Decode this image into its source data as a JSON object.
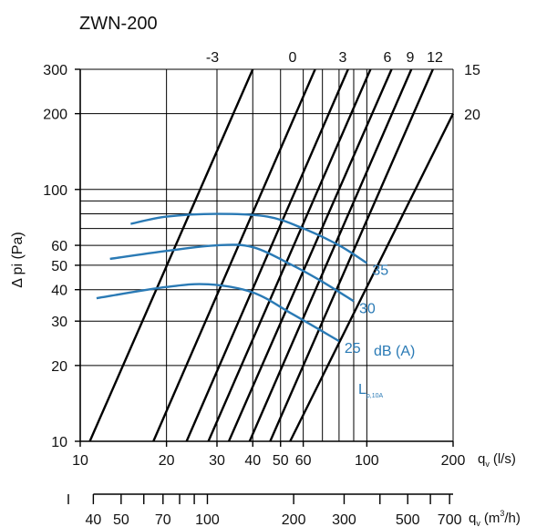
{
  "chart_data": {
    "type": "line",
    "title": "ZWN-200",
    "ylabel": "Δ pi (Pa)",
    "xlabel": "q",
    "xlabel_subscript": "v",
    "xlabel_unit": "(l/s)",
    "x2label": "q",
    "x2label_subscript": "v",
    "x2label_unit_pre": "(m",
    "x2label_unit_sup": "3",
    "x2label_unit_post": "/h)",
    "x_scale": "log",
    "y_scale": "log",
    "xlim": [
      10,
      200
    ],
    "ylim": [
      10,
      300
    ],
    "grid": true,
    "x_ticks": [
      10,
      20,
      30,
      40,
      50,
      60,
      100,
      200
    ],
    "x_tick_labels": [
      "10",
      "20",
      "30",
      "40",
      "50",
      "60",
      "100",
      "200"
    ],
    "y_ticks": [
      10,
      20,
      30,
      40,
      50,
      60,
      100,
      200,
      300
    ],
    "y_tick_labels": [
      "10",
      "20",
      "30",
      "40",
      "50",
      "60",
      "100",
      "200",
      "300"
    ],
    "x2_ticks": [
      40,
      50,
      70,
      100,
      200,
      300,
      500,
      700
    ],
    "x2_tick_labels": [
      "40",
      "50",
      "70",
      "100",
      "200",
      "300",
      "500",
      "700"
    ],
    "x2_minor": [
      60,
      80,
      90,
      400,
      600
    ],
    "setting_labels": [
      "-3",
      "0",
      "3",
      "6",
      "9",
      "12",
      "15",
      "20"
    ],
    "setting_lines": [
      {
        "name": "-3",
        "points": [
          [
            10.8,
            10
          ],
          [
            40,
            300
          ]
        ]
      },
      {
        "name": "0",
        "points": [
          [
            18,
            10
          ],
          [
            66,
            300
          ]
        ]
      },
      {
        "name": "3",
        "points": [
          [
            23.5,
            10
          ],
          [
            86,
            300
          ]
        ]
      },
      {
        "name": "6",
        "points": [
          [
            28,
            10
          ],
          [
            103,
            300
          ]
        ]
      },
      {
        "name": "9",
        "points": [
          [
            33,
            10
          ],
          [
            122,
            300
          ]
        ]
      },
      {
        "name": "12",
        "points": [
          [
            39,
            10
          ],
          [
            143,
            300
          ]
        ]
      },
      {
        "name": "15",
        "points": [
          [
            46,
            10
          ],
          [
            170,
            300
          ]
        ]
      },
      {
        "name": "20",
        "points": [
          [
            54,
            10
          ],
          [
            200,
            200
          ]
        ]
      }
    ],
    "series": [
      {
        "name": "35",
        "points": [
          [
            15,
            73
          ],
          [
            20,
            78
          ],
          [
            30,
            80
          ],
          [
            45,
            78
          ],
          [
            60,
            70
          ],
          [
            80,
            60
          ],
          [
            100,
            51
          ]
        ]
      },
      {
        "name": "30",
        "points": [
          [
            12.7,
            53
          ],
          [
            20,
            57
          ],
          [
            30,
            60
          ],
          [
            40,
            59
          ],
          [
            55,
            50
          ],
          [
            70,
            43
          ],
          [
            90,
            36
          ]
        ]
      },
      {
        "name": "25",
        "points": [
          [
            11.4,
            37
          ],
          [
            20,
            41
          ],
          [
            28,
            42
          ],
          [
            40,
            39
          ],
          [
            55,
            32
          ],
          [
            80,
            25
          ]
        ]
      }
    ],
    "series_label_unit": "dB (A)",
    "annotation_main": "L",
    "annotation_sub": "p,10A",
    "colors": {
      "curve": "#2a7ab5",
      "line": "#000000",
      "grid": "#000000"
    }
  }
}
